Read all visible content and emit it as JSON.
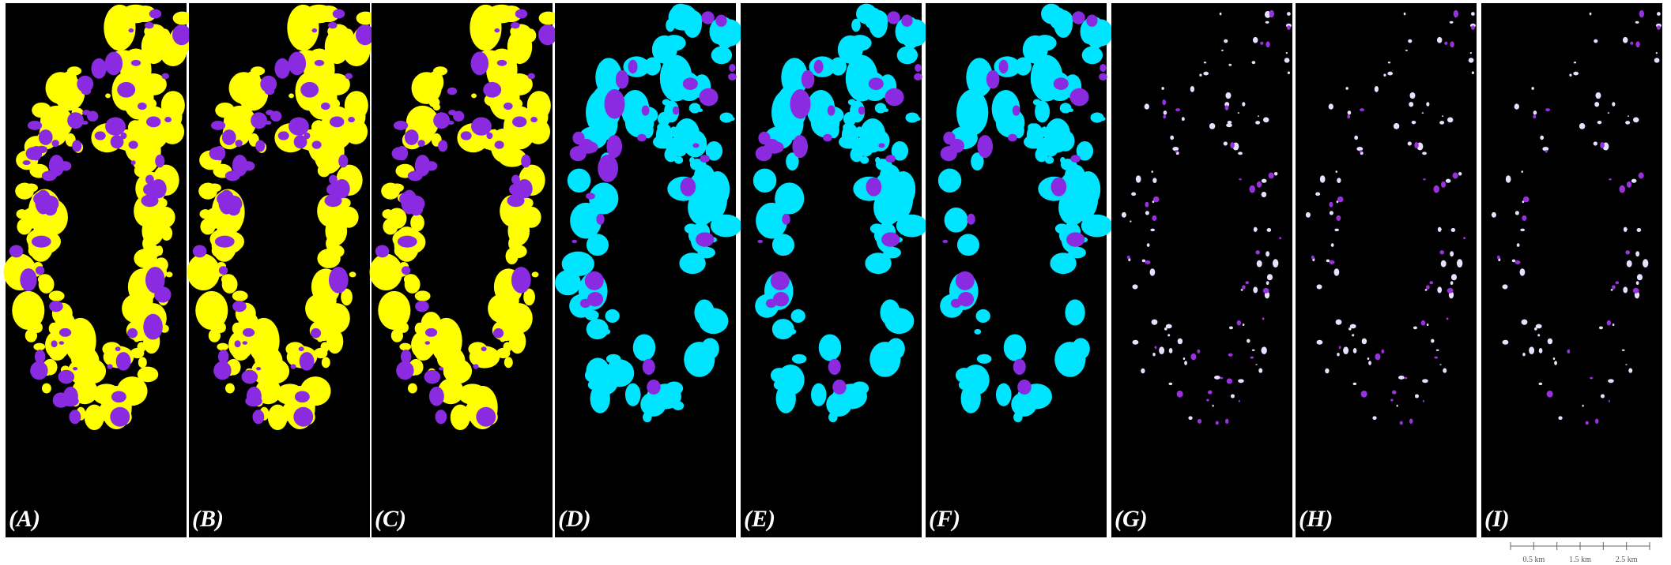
{
  "panels": [
    {
      "label": "(A)"
    },
    {
      "label": "(B)"
    },
    {
      "label": "(C)"
    },
    {
      "label": "(D)"
    },
    {
      "label": "(E)"
    },
    {
      "label": "(F)"
    },
    {
      "label": "(G)"
    },
    {
      "label": "(H)"
    },
    {
      "label": "(I)"
    }
  ],
  "scale_bar": {
    "labels": [
      "0.5 km",
      "1.5 km",
      "2.5 km"
    ]
  }
}
